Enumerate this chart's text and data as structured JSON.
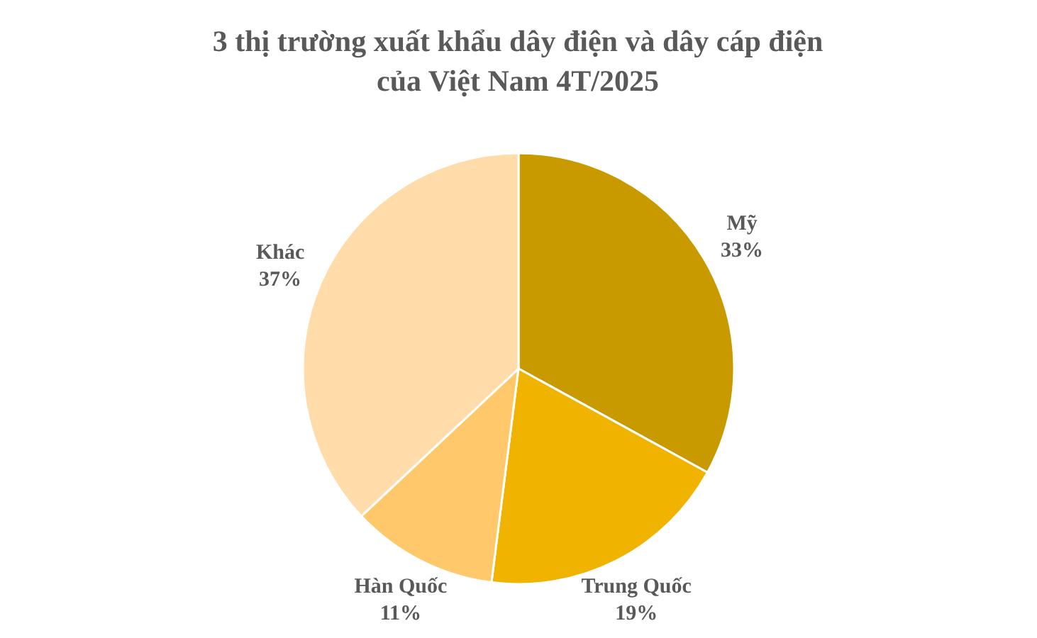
{
  "chart_data": {
    "type": "pie",
    "title": "3 thị trường xuất khẩu dây điện và dây cáp điện của Việt Nam 4T/2025",
    "categories": [
      "Mỹ",
      "Trung Quốc",
      "Hàn Quốc",
      "Khác"
    ],
    "values": [
      33,
      19,
      11,
      37
    ],
    "value_labels": [
      "33%",
      "19%",
      "11%",
      "37%"
    ],
    "colors": [
      "#c89a00",
      "#f0b400",
      "#ffc96b",
      "#ffdcaa"
    ]
  }
}
